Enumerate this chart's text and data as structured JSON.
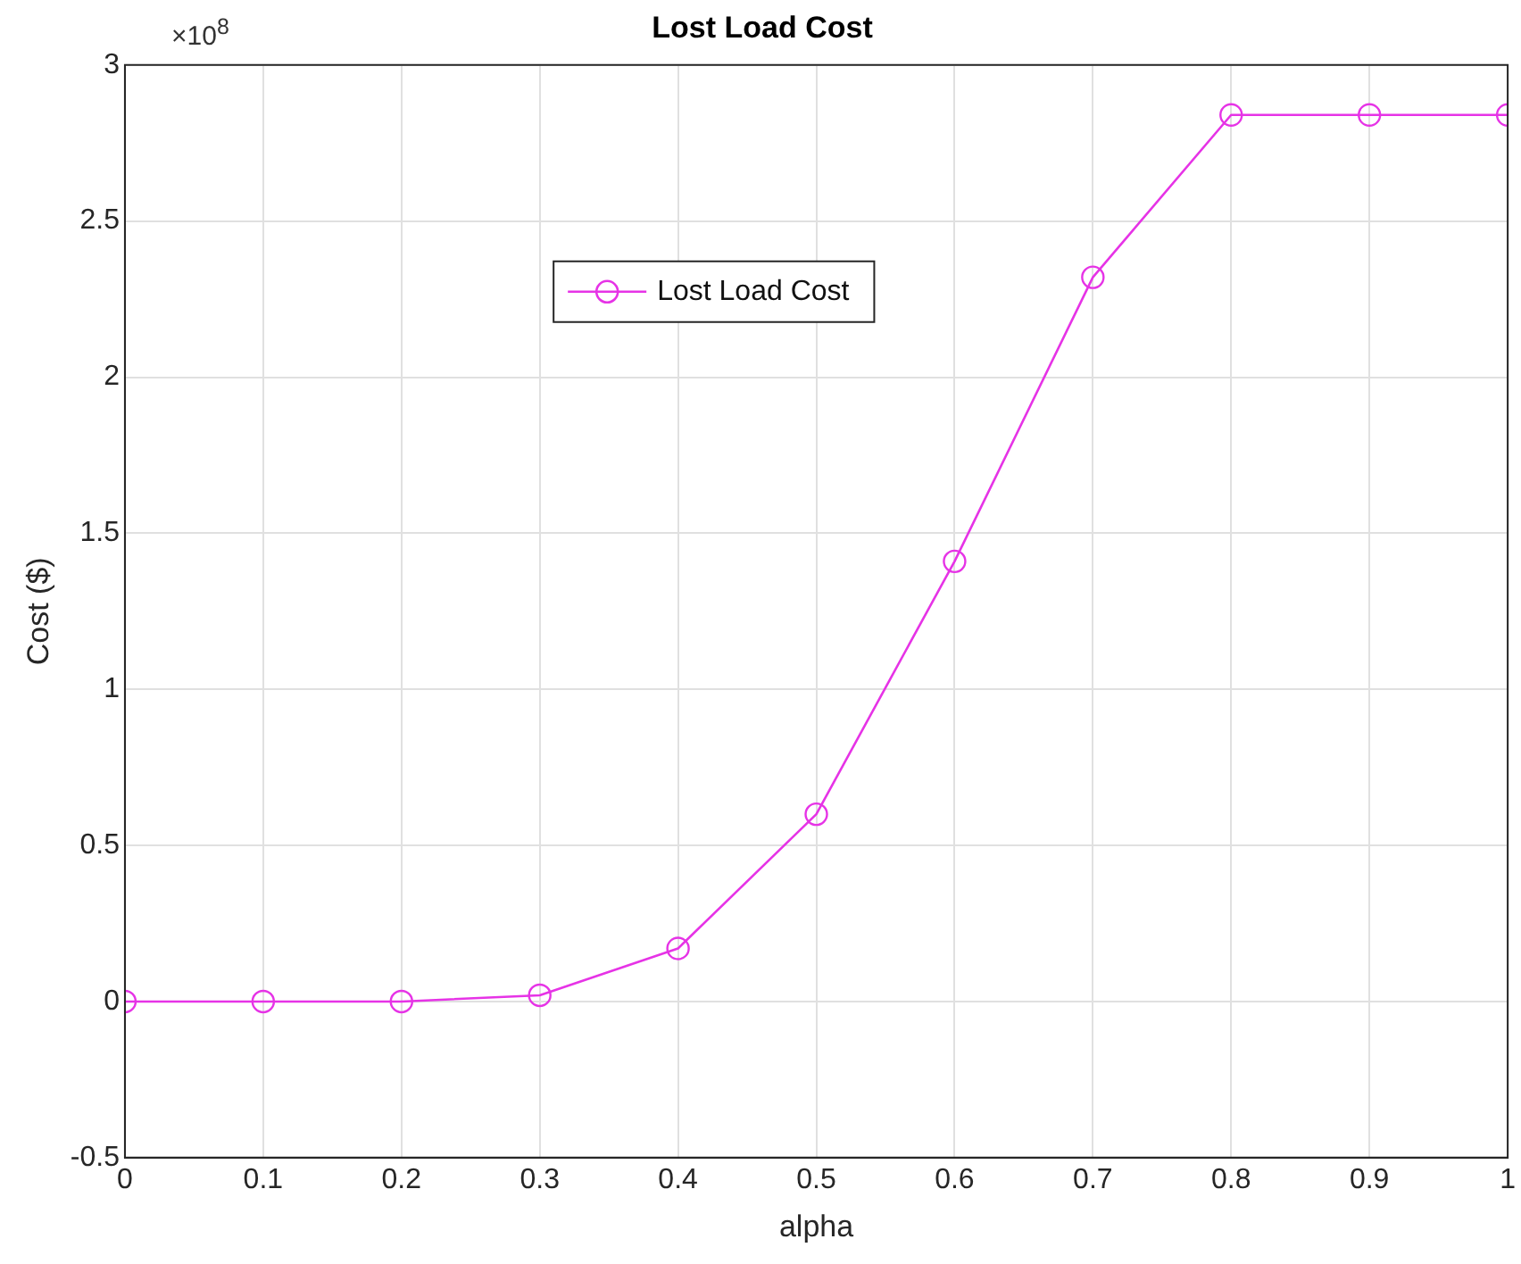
{
  "chart_data": {
    "type": "line",
    "title": "Lost Load Cost",
    "xlabel": "alpha",
    "ylabel": "Cost ($)",
    "annotations": [
      "×10$^{8}$"
    ],
    "x": [
      0,
      0.1,
      0.2,
      0.3,
      0.4,
      0.5,
      0.6,
      0.7,
      0.8,
      0.9,
      1
    ],
    "series": [
      {
        "name": "Lost Load Cost",
        "color": "#e633e6",
        "values": [
          0,
          0,
          0,
          0.02,
          0.17,
          0.6,
          1.41,
          2.32,
          2.84,
          2.84,
          2.84
        ]
      }
    ],
    "xlim": [
      0,
      1
    ],
    "xticks": [
      0,
      0.1,
      0.2,
      0.3,
      0.4,
      0.5,
      0.6,
      0.7,
      0.8,
      0.9,
      1
    ],
    "ylim": [
      -0.5,
      3
    ],
    "yticks": [
      -0.5,
      0,
      0.5,
      1,
      1.5,
      2,
      2.5,
      3
    ],
    "grid": true,
    "legend": "top",
    "marker": "circle",
    "line_style": "solid"
  }
}
